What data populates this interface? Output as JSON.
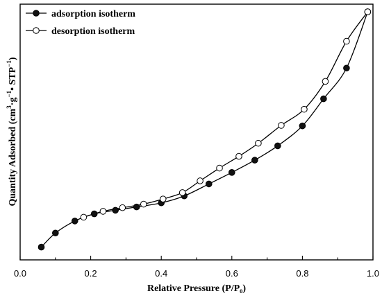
{
  "chart_data": {
    "type": "line",
    "xlabel": "Relative Pressure (P/P₀)",
    "ylabel": {
      "prefix": "Quantity Adsorbed (cm",
      "sup1": "3",
      "mid1": "·g",
      "sup2": "−1",
      "mid2": "• STP",
      "sup3": "−1",
      "suffix": ")"
    },
    "xlim": [
      0.0,
      1.0
    ],
    "ylim": [
      0,
      100
    ],
    "x_ticks": [
      "0.0",
      "0.2",
      "0.4",
      "0.6",
      "0.8",
      "1.0"
    ],
    "y_ticks_labeled": false,
    "grid": false,
    "legend_position": "top-left",
    "series": [
      {
        "name": "adsorption isotherm",
        "marker": "filled-circle",
        "color": "#000000",
        "x": [
          0.06,
          0.1,
          0.155,
          0.21,
          0.27,
          0.33,
          0.4,
          0.465,
          0.535,
          0.6,
          0.665,
          0.73,
          0.8,
          0.86,
          0.925,
          0.985
        ],
        "y": [
          5.0,
          10.5,
          15.2,
          18.0,
          19.4,
          20.7,
          22.3,
          25.0,
          29.7,
          34.2,
          39.0,
          44.6,
          52.4,
          63.0,
          75.0,
          97.0
        ]
      },
      {
        "name": "desorption isotherm",
        "marker": "open-circle",
        "color": "#000000",
        "x": [
          0.985,
          0.925,
          0.865,
          0.805,
          0.74,
          0.675,
          0.62,
          0.565,
          0.51,
          0.46,
          0.405,
          0.35,
          0.29,
          0.235,
          0.18
        ],
        "y": [
          97.0,
          85.5,
          69.8,
          58.9,
          52.6,
          45.6,
          40.5,
          35.9,
          30.9,
          26.3,
          23.8,
          21.8,
          20.4,
          19.0,
          16.7
        ]
      }
    ]
  }
}
